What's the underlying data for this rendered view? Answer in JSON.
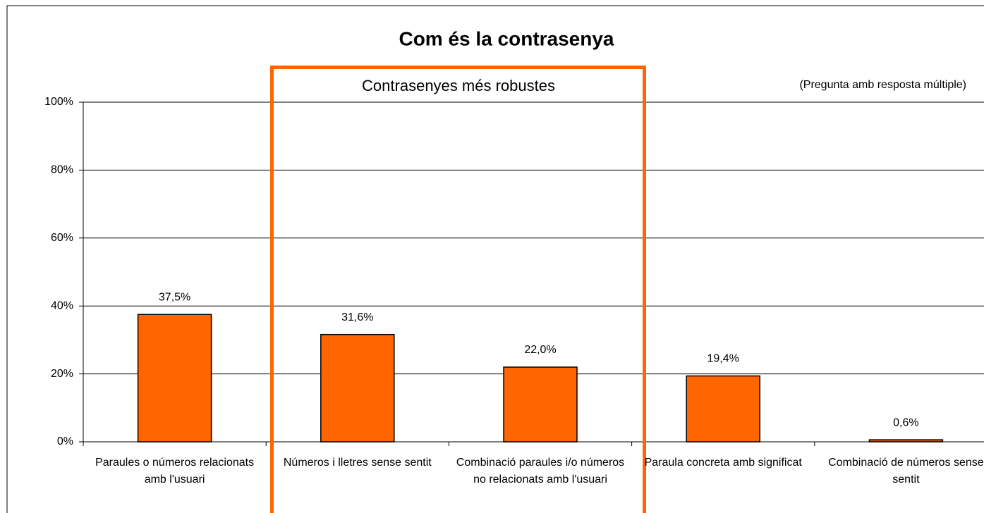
{
  "chart_data": {
    "type": "bar",
    "title": "Com és la contrasenya",
    "annotations": [
      "Contrasenyes més robustes",
      "(Pregunta amb resposta múltiple)"
    ],
    "categories": [
      "Paraules o números relacionats amb l'usuari",
      "Números i lletres sense sentit",
      "Combinació paraules i/o números no relacionats amb l'usuari",
      "Paraula concreta amb significat",
      "Combinació de números sense sentit"
    ],
    "values": [
      37.5,
      31.6,
      22.0,
      19.4,
      0.6
    ],
    "value_labels": [
      "37,5%",
      "31,6%",
      "22,0%",
      "19,4%",
      "0,6%"
    ],
    "color": "#ff6600",
    "ylim": [
      0,
      100
    ],
    "yticks": [
      {
        "value": 0,
        "label": "0%"
      },
      {
        "value": 20,
        "label": "20%"
      },
      {
        "value": 40,
        "label": "40%"
      },
      {
        "value": 60,
        "label": "60%"
      },
      {
        "value": 80,
        "label": "80%"
      },
      {
        "value": 100,
        "label": "100%"
      }
    ],
    "grid": true
  }
}
